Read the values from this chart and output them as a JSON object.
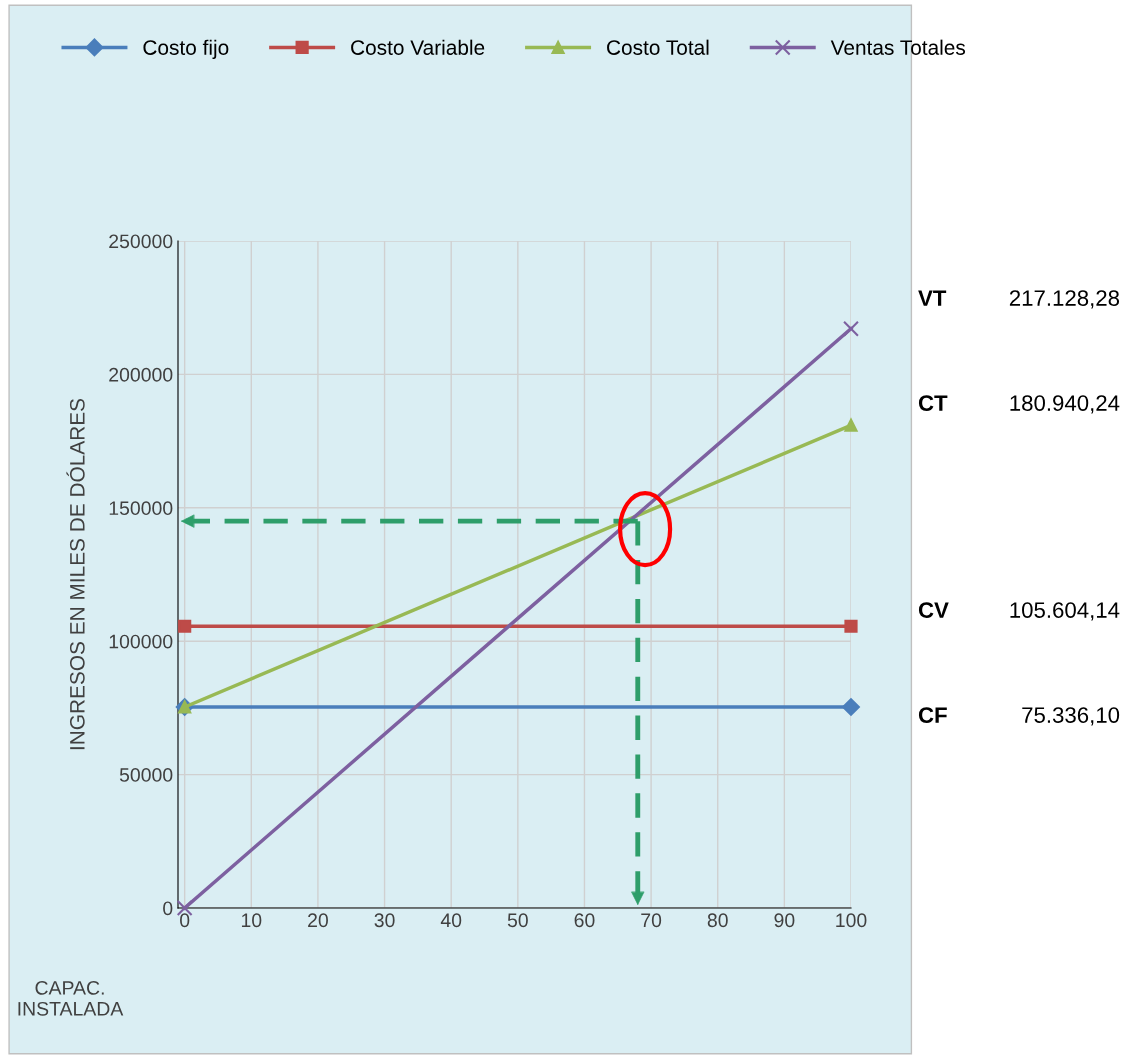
{
  "chart_data": {
    "type": "line",
    "ylabel": "INGRESOS EN MILES DE DÓLARES",
    "xlabel": "CAPAC.\nINSTALADA",
    "x": [
      0,
      100
    ],
    "series": [
      {
        "name": "Costo fijo",
        "color": "#4a7ebb",
        "marker": "diamond",
        "values": [
          75336.1,
          75336.1
        ]
      },
      {
        "name": "Costo Variable",
        "color": "#be4b48",
        "marker": "square",
        "values": [
          105604.14,
          105604.14
        ]
      },
      {
        "name": "Costo Total",
        "color": "#98b954",
        "marker": "triangle",
        "values": [
          75336.1,
          180940.24
        ]
      },
      {
        "name": "Ventas Totales",
        "color": "#7d60a0",
        "marker": "cross",
        "values": [
          0,
          217128.28
        ]
      }
    ],
    "xlim": [
      -1,
      100
    ],
    "xticks": [
      0,
      10,
      20,
      30,
      40,
      50,
      60,
      70,
      80,
      90,
      100
    ],
    "ylim": [
      0,
      250000
    ],
    "yticks": [
      0,
      50000,
      100000,
      150000,
      200000,
      250000
    ],
    "grid": true,
    "legend": "top",
    "ref_lines": [
      {
        "axis": "y",
        "value": 145000,
        "color": "#2e9e6a",
        "line_style": "dashed"
      },
      {
        "axis": "x",
        "value": 68,
        "color": "#2e9e6a",
        "line_style": "dashed"
      }
    ],
    "annotations": [
      "VT",
      "217.128,28",
      "CT",
      "180.940,24",
      "CV",
      "105.604,14",
      "CF",
      "75.336,10"
    ]
  }
}
